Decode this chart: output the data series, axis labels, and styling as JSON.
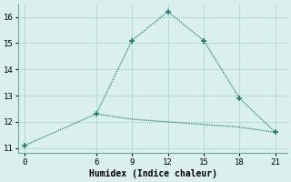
{
  "line1_x": [
    0,
    6,
    9,
    12,
    15,
    18,
    21
  ],
  "line1_y": [
    11.1,
    12.3,
    15.1,
    16.2,
    15.1,
    12.9,
    11.6
  ],
  "line2_x": [
    6,
    9,
    12,
    15,
    18,
    21
  ],
  "line2_y": [
    12.3,
    12.1,
    12.0,
    11.9,
    11.8,
    11.6
  ],
  "xlabel": "Humidex (Indice chaleur)",
  "xlim": [
    -0.5,
    22
  ],
  "ylim": [
    10.8,
    16.5
  ],
  "xticks": [
    0,
    6,
    9,
    12,
    15,
    18,
    21
  ],
  "yticks": [
    11,
    12,
    13,
    14,
    15,
    16
  ],
  "line_color": "#1a7a6e",
  "bg_color": "#daf0ed",
  "grid_color": "#b8ddd8"
}
